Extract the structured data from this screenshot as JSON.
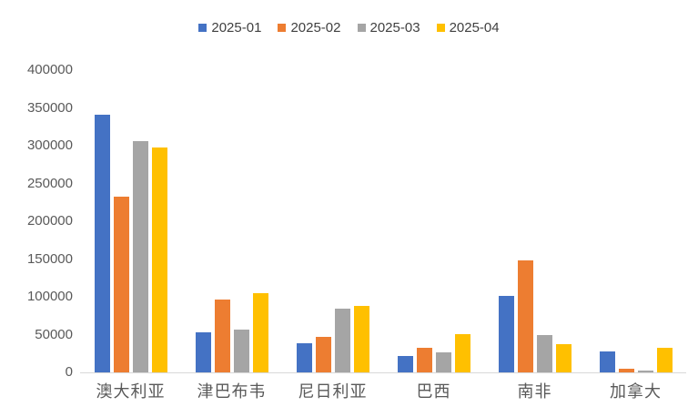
{
  "chart_data": {
    "type": "bar",
    "title": "",
    "xlabel": "",
    "ylabel": "",
    "categories": [
      "澳大利亚",
      "津巴布韦",
      "尼日利亚",
      "巴西",
      "南非",
      "加拿大"
    ],
    "series": [
      {
        "name": "2025-01",
        "color": "#4472C4",
        "values": [
          341000,
          53000,
          38000,
          22000,
          101000,
          28000
        ]
      },
      {
        "name": "2025-02",
        "color": "#ED7D31",
        "values": [
          233000,
          96000,
          47000,
          33000,
          148000,
          5000
        ]
      },
      {
        "name": "2025-03",
        "color": "#A5A5A5",
        "values": [
          306000,
          57000,
          84000,
          26000,
          49000,
          2000
        ]
      },
      {
        "name": "2025-04",
        "color": "#FFC000",
        "values": [
          298000,
          105000,
          88000,
          51000,
          37000,
          32000
        ]
      }
    ],
    "ylim": [
      0,
      400000
    ],
    "ytick_step": 50000,
    "yticks": [
      400000,
      350000,
      300000,
      250000,
      200000,
      150000,
      100000,
      50000,
      0
    ],
    "legend_position": "top",
    "grid": false,
    "axis_line_color": "#d9d9d9",
    "tick_label_color": "#595959",
    "legend_text_color": "#404040",
    "background_color": "#ffffff"
  }
}
